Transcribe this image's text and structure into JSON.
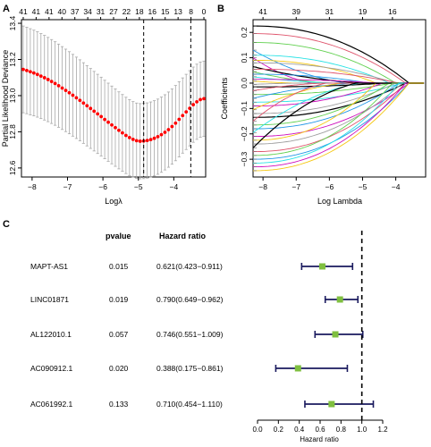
{
  "chart_data": [
    {
      "panel_label": "A",
      "type": "scatter",
      "xlabel": "Logλ",
      "ylabel": "Partial Likelihood Deviance",
      "xlim": [
        -8.3,
        -3.1
      ],
      "ylim": [
        12.55,
        13.42
      ],
      "xticks": [
        -8,
        -7,
        -6,
        -5,
        -4
      ],
      "yticks": [
        12.6,
        12.8,
        13.0,
        13.2,
        13.4
      ],
      "top_axis_labels": [
        "41",
        "41",
        "41",
        "40",
        "37",
        "34",
        "31",
        "27",
        "22",
        "18",
        "16",
        "15",
        "13",
        "8",
        "0"
      ],
      "vlines": [
        -4.85,
        -3.52
      ],
      "point_color": "#ff0000",
      "errorbar_color": "#a8a8a8",
      "x": [
        -8.25,
        -8.15,
        -8.05,
        -7.95,
        -7.85,
        -7.75,
        -7.65,
        -7.55,
        -7.45,
        -7.35,
        -7.25,
        -7.15,
        -7.05,
        -6.95,
        -6.85,
        -6.75,
        -6.65,
        -6.55,
        -6.45,
        -6.35,
        -6.25,
        -6.15,
        -6.05,
        -5.95,
        -5.85,
        -5.75,
        -5.65,
        -5.55,
        -5.45,
        -5.35,
        -5.25,
        -5.15,
        -5.05,
        -4.95,
        -4.85,
        -4.75,
        -4.65,
        -4.55,
        -4.45,
        -4.35,
        -4.25,
        -4.15,
        -4.05,
        -3.95,
        -3.85,
        -3.75,
        -3.65,
        -3.55,
        -3.45,
        -3.35,
        -3.25,
        -3.15
      ],
      "y": [
        13.145,
        13.139,
        13.132,
        13.125,
        13.117,
        13.108,
        13.099,
        13.089,
        13.078,
        13.067,
        13.055,
        13.042,
        13.029,
        13.016,
        13.002,
        12.988,
        12.974,
        12.959,
        12.944,
        12.929,
        12.914,
        12.899,
        12.884,
        12.868,
        12.853,
        12.838,
        12.823,
        12.808,
        12.794,
        12.78,
        12.768,
        12.758,
        12.751,
        12.748,
        12.749,
        12.752,
        12.757,
        12.764,
        12.773,
        12.784,
        12.797,
        12.812,
        12.829,
        12.848,
        12.869,
        12.89,
        12.91,
        12.93,
        12.95,
        12.966,
        12.978,
        12.983
      ],
      "err": [
        0.24,
        0.239,
        0.238,
        0.237,
        0.236,
        0.235,
        0.234,
        0.233,
        0.232,
        0.231,
        0.23,
        0.229,
        0.228,
        0.227,
        0.226,
        0.225,
        0.224,
        0.223,
        0.222,
        0.221,
        0.22,
        0.219,
        0.218,
        0.217,
        0.216,
        0.215,
        0.214,
        0.213,
        0.212,
        0.211,
        0.21,
        0.209,
        0.208,
        0.208,
        0.208,
        0.208,
        0.208,
        0.208,
        0.208,
        0.208,
        0.208,
        0.208,
        0.208,
        0.208,
        0.208,
        0.208,
        0.208,
        0.208,
        0.208,
        0.208,
        0.208,
        0.208
      ]
    },
    {
      "panel_label": "B",
      "type": "line",
      "xlabel": "Log Lambda",
      "ylabel": "Coefficients",
      "xlim": [
        -8.3,
        -3.1
      ],
      "ylim": [
        -0.37,
        0.25
      ],
      "xticks": [
        -8,
        -7,
        -6,
        -5,
        -4
      ],
      "yticks": [
        -0.3,
        -0.2,
        -0.1,
        0.0,
        0.1,
        0.2
      ],
      "top_axis_labels": [
        "41",
        "39",
        "31",
        "19",
        "16"
      ],
      "series_colors": [
        "#000000",
        "#df536b",
        "#61d04f",
        "#2297e6",
        "#28e2e5",
        "#cd0bbc",
        "#f5c710",
        "#9e9e9e"
      ],
      "series": [
        {
          "start": 0.225,
          "shape": "flat",
          "zero_at": -3.6
        },
        {
          "start": 0.195,
          "shape": "flat",
          "zero_at": -3.7
        },
        {
          "start": 0.16,
          "shape": "flat",
          "zero_at": -4.0
        },
        {
          "start": 0.13,
          "shape": "early",
          "zero_at": -5.5
        },
        {
          "start": 0.11,
          "shape": "flat",
          "zero_at": -4.2
        },
        {
          "start": 0.1,
          "shape": "early",
          "zero_at": -6.5
        },
        {
          "start": 0.09,
          "shape": "flat",
          "zero_at": -4.6
        },
        {
          "start": 0.08,
          "shape": "flat",
          "zero_at": -4.0
        },
        {
          "start": 0.065,
          "shape": "early",
          "zero_at": -5.0
        },
        {
          "start": 0.055,
          "shape": "flat",
          "zero_at": -3.9
        },
        {
          "start": 0.045,
          "shape": "early",
          "zero_at": -6.0
        },
        {
          "start": 0.035,
          "shape": "flat",
          "zero_at": -4.8
        },
        {
          "start": 0.025,
          "shape": "early",
          "zero_at": -5.8
        },
        {
          "start": 0.015,
          "shape": "flat",
          "zero_at": -4.5
        },
        {
          "start": 0.008,
          "shape": "early",
          "zero_at": -7.0
        },
        {
          "start": -0.005,
          "shape": "early",
          "zero_at": -6.8
        },
        {
          "start": -0.015,
          "shape": "flat",
          "zero_at": -4.3
        },
        {
          "start": -0.03,
          "shape": "early",
          "zero_at": -6.2
        },
        {
          "start": -0.045,
          "shape": "flat",
          "zero_at": -4.1
        },
        {
          "start": -0.06,
          "shape": "early",
          "zero_at": -5.3
        },
        {
          "start": -0.075,
          "shape": "flat",
          "zero_at": -3.8
        },
        {
          "start": -0.09,
          "shape": "flat",
          "zero_at": -4.4
        },
        {
          "start": -0.105,
          "shape": "early",
          "zero_at": -5.6
        },
        {
          "start": -0.12,
          "shape": "flat",
          "zero_at": -4.0
        },
        {
          "start": -0.135,
          "shape": "flat",
          "zero_at": -3.7
        },
        {
          "start": -0.15,
          "shape": "early",
          "zero_at": -6.1
        },
        {
          "start": -0.165,
          "shape": "flat",
          "zero_at": -4.2
        },
        {
          "start": -0.18,
          "shape": "flat",
          "zero_at": -3.9
        },
        {
          "start": -0.195,
          "shape": "early",
          "zero_at": -5.1
        },
        {
          "start": -0.21,
          "shape": "flat",
          "zero_at": -3.6
        },
        {
          "start": -0.225,
          "shape": "flat",
          "zero_at": -4.6
        },
        {
          "start": -0.24,
          "shape": "flat",
          "zero_at": -3.8
        },
        {
          "start": -0.255,
          "shape": "early",
          "zero_at": -5.2
        },
        {
          "start": -0.27,
          "shape": "flat",
          "zero_at": -3.7
        },
        {
          "start": -0.285,
          "shape": "flat",
          "zero_at": -4.1
        },
        {
          "start": -0.3,
          "shape": "flat",
          "zero_at": -3.6
        },
        {
          "start": -0.315,
          "shape": "flat",
          "zero_at": -3.9
        },
        {
          "start": -0.33,
          "shape": "flat",
          "zero_at": -3.7
        },
        {
          "start": -0.345,
          "shape": "flat",
          "zero_at": -3.6
        }
      ]
    },
    {
      "panel_label": "C",
      "type": "forest",
      "headers": {
        "pvalue": "pvalue",
        "hr": "Hazard ratio"
      },
      "xlabel": "Hazard ratio",
      "xlim": [
        0.0,
        1.2
      ],
      "xticks": [
        "0.0",
        "0.2",
        "0.4",
        "0.6",
        "0.8",
        "1.0",
        "1.2"
      ],
      "reference_line": 1.0,
      "box_color": "#7fbf3f",
      "ci_color": "#1a1a5e",
      "rows": [
        {
          "label": "MAPT-AS1",
          "pvalue": "0.015",
          "hr_text": "0.621(0.423−0.911)",
          "hr": 0.621,
          "lower": 0.423,
          "upper": 0.911
        },
        {
          "label": "LINC01871",
          "pvalue": "0.019",
          "hr_text": "0.790(0.649−0.962)",
          "hr": 0.79,
          "lower": 0.649,
          "upper": 0.962
        },
        {
          "label": "AL122010.1",
          "pvalue": "0.057",
          "hr_text": "0.746(0.551−1.009)",
          "hr": 0.746,
          "lower": 0.551,
          "upper": 1.009
        },
        {
          "label": "AC090912.1",
          "pvalue": "0.020",
          "hr_text": "0.388(0.175−0.861)",
          "hr": 0.388,
          "lower": 0.175,
          "upper": 0.861
        },
        {
          "label": "AC061992.1",
          "pvalue": "0.133",
          "hr_text": "0.710(0.454−1.110)",
          "hr": 0.71,
          "lower": 0.454,
          "upper": 1.11
        }
      ]
    }
  ]
}
